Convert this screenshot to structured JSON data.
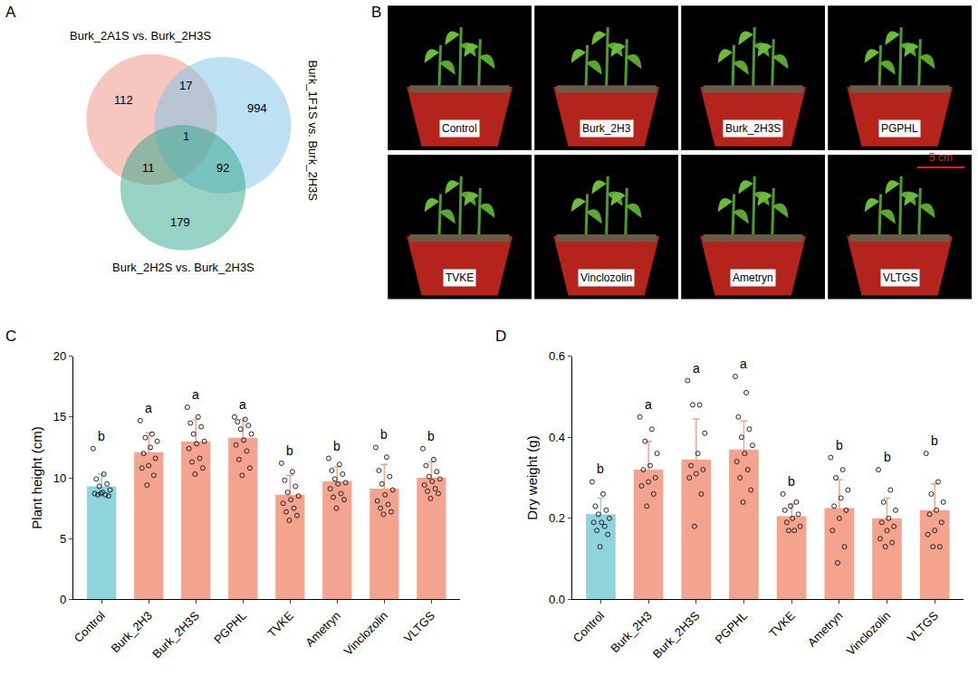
{
  "panel_labels": [
    "A",
    "B",
    "C",
    "D"
  ],
  "venn": {
    "sets": [
      {
        "name": "Burk_2A1S vs. Burk_2H3S",
        "color": "#f08f80"
      },
      {
        "name": "Burk_1F1S vs. Burk_2H3S",
        "color": "#7cc3e6"
      },
      {
        "name": "Burk_2H2S vs. Burk_2H3S",
        "color": "#2fa58a"
      }
    ],
    "regions": [
      {
        "sets": [
          0
        ],
        "value": 112
      },
      {
        "sets": [
          0,
          1
        ],
        "value": 17
      },
      {
        "sets": [
          1
        ],
        "value": 994
      },
      {
        "sets": [
          0,
          2
        ],
        "value": 11
      },
      {
        "sets": [
          0,
          1,
          2
        ],
        "value": 1
      },
      {
        "sets": [
          1,
          2
        ],
        "value": 92
      },
      {
        "sets": [
          2
        ],
        "value": 179
      }
    ]
  },
  "photos": {
    "labels": [
      "Control",
      "Burk_2H3",
      "Burk_2H3S",
      "PGPHL",
      "TVKE",
      "Vinclozolin",
      "Ametryn",
      "VLTGS"
    ],
    "scale_bar": "5 cm"
  },
  "chart_data": [
    {
      "type": "bar",
      "y_label": "Plant height (cm)",
      "categories": [
        "Control",
        "Burk_2H3",
        "Burk_2H3S",
        "PGPHL",
        "TVKE",
        "Ametryn",
        "Vinclozolin",
        "VLTGS"
      ],
      "values": [
        9.3,
        12.1,
        13.0,
        13.3,
        8.6,
        9.7,
        9.1,
        10.0
      ],
      "error": [
        1.0,
        1.6,
        1.8,
        1.5,
        1.6,
        1.2,
        2.0,
        1.3
      ],
      "letters": [
        "b",
        "a",
        "a",
        "a",
        "b",
        "b",
        "b",
        "b"
      ],
      "colors": [
        "#8fd3dd",
        "#f4a48e",
        "#f4a48e",
        "#f4a48e",
        "#f4a48e",
        "#f4a48e",
        "#f4a48e",
        "#f4a48e"
      ],
      "points": [
        [
          12.4,
          10.3,
          9.9,
          9.5,
          9.3,
          9.0,
          8.8,
          8.7,
          8.6,
          8.6,
          8.5,
          8.7
        ],
        [
          14.7,
          13.6,
          13.3,
          13.0,
          12.5,
          12.0,
          11.6,
          11.0,
          10.8,
          10.2,
          9.4
        ],
        [
          15.8,
          15.0,
          14.5,
          14.2,
          13.6,
          13.0,
          12.8,
          12.4,
          11.6,
          11.3,
          10.8,
          10.3
        ],
        [
          15.0,
          14.8,
          14.6,
          14.3,
          14.0,
          13.6,
          13.1,
          12.7,
          12.2,
          11.5,
          10.8,
          10.2
        ],
        [
          11.2,
          10.5,
          9.8,
          9.3,
          8.8,
          8.5,
          8.2,
          7.9,
          7.5,
          7.2,
          6.9,
          6.5
        ],
        [
          11.6,
          11.1,
          10.6,
          10.3,
          9.9,
          9.6,
          9.5,
          9.1,
          8.7,
          8.4,
          8.2,
          7.5
        ],
        [
          12.5,
          11.7,
          10.6,
          10.1,
          9.5,
          9.0,
          8.6,
          8.1,
          7.8,
          7.5,
          7.2,
          7.0
        ],
        [
          12.4,
          11.5,
          11.0,
          10.5,
          10.1,
          9.9,
          9.7,
          9.4,
          9.1,
          8.9,
          8.7,
          8.3
        ]
      ],
      "ylim": [
        0,
        20
      ],
      "yticks": [
        0,
        5,
        10,
        15,
        20
      ],
      "grid": false
    },
    {
      "type": "bar",
      "y_label": "Dry weight (g)",
      "categories": [
        "Control",
        "Burk_2H3",
        "Burk_2H3S",
        "PGPHL",
        "TVKE",
        "Ametryn",
        "Vinclozolin",
        "VLTGS"
      ],
      "values": [
        0.21,
        0.32,
        0.345,
        0.37,
        0.205,
        0.225,
        0.2,
        0.22
      ],
      "error": [
        0.04,
        0.07,
        0.1,
        0.07,
        0.03,
        0.07,
        0.05,
        0.065
      ],
      "letters": [
        "b",
        "a",
        "a",
        "a",
        "b",
        "b",
        "b",
        "b"
      ],
      "colors": [
        "#8fd3dd",
        "#f4a48e",
        "#f4a48e",
        "#f4a48e",
        "#f4a48e",
        "#f4a48e",
        "#f4a48e",
        "#f4a48e"
      ],
      "points": [
        [
          0.29,
          0.26,
          0.23,
          0.22,
          0.21,
          0.2,
          0.19,
          0.19,
          0.18,
          0.17,
          0.16,
          0.13
        ],
        [
          0.45,
          0.42,
          0.39,
          0.36,
          0.33,
          0.32,
          0.3,
          0.29,
          0.28,
          0.26,
          0.23
        ],
        [
          0.54,
          0.48,
          0.48,
          0.41,
          0.36,
          0.33,
          0.32,
          0.31,
          0.3,
          0.26,
          0.18
        ],
        [
          0.55,
          0.51,
          0.45,
          0.42,
          0.4,
          0.38,
          0.36,
          0.34,
          0.32,
          0.3,
          0.27,
          0.24
        ],
        [
          0.26,
          0.24,
          0.23,
          0.22,
          0.21,
          0.2,
          0.19,
          0.18,
          0.17,
          0.17
        ],
        [
          0.35,
          0.32,
          0.3,
          0.27,
          0.25,
          0.23,
          0.22,
          0.2,
          0.17,
          0.13,
          0.09
        ],
        [
          0.32,
          0.27,
          0.24,
          0.22,
          0.2,
          0.19,
          0.18,
          0.17,
          0.15,
          0.14,
          0.13
        ],
        [
          0.36,
          0.29,
          0.26,
          0.24,
          0.22,
          0.21,
          0.19,
          0.17,
          0.16,
          0.13,
          0.13
        ]
      ],
      "ylim": [
        0,
        0.6
      ],
      "yticks": [
        {
          "value": 0,
          "label": "0.0"
        },
        0.2,
        0.4,
        0.6
      ],
      "grid": false
    }
  ]
}
